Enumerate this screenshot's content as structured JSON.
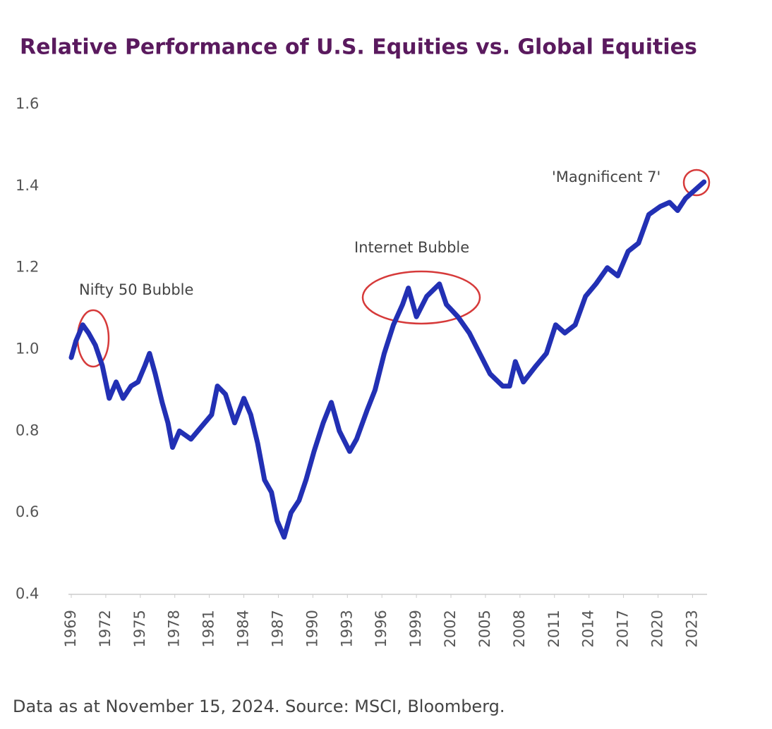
{
  "chart_data": {
    "type": "line",
    "title": "Relative Performance of U.S. Equities vs. Global Equities",
    "source": "Data as at November 15, 2024. Source: MSCI, Bloomberg.",
    "annotations": [
      "Nifty 50 Bubble",
      "Internet Bubble",
      "'Magnificent 7'"
    ],
    "xlim": [
      1969,
      2025
    ],
    "xticks": [
      1969,
      1972,
      1975,
      1978,
      1981,
      1984,
      1987,
      1990,
      1993,
      1996,
      1999,
      2002,
      2005,
      2008,
      2011,
      2014,
      2017,
      2020,
      2023
    ],
    "ylim": [
      0.4,
      1.6
    ],
    "yticks": [
      0.4,
      0.6,
      0.8,
      {
        "value": 1,
        "label": "1.0"
      },
      1.2,
      1.4,
      1.6
    ],
    "grid": false,
    "series": [
      {
        "color": "#2230b4",
        "x": [
          1969.0,
          1969.4,
          1970.0,
          1970.5,
          1971.1,
          1971.7,
          1972.3,
          1972.9,
          1973.5,
          1974.2,
          1974.8,
          1975.4,
          1975.8,
          1976.3,
          1976.9,
          1977.4,
          1977.8,
          1978.4,
          1979.4,
          1980.3,
          1981.2,
          1981.7,
          1982.4,
          1983.2,
          1984.0,
          1984.6,
          1985.2,
          1985.8,
          1986.4,
          1986.9,
          1987.5,
          1988.1,
          1988.8,
          1989.4,
          1990.1,
          1990.9,
          1991.6,
          1992.3,
          1993.2,
          1993.8,
          1994.7,
          1995.4,
          1996.2,
          1997.0,
          1997.8,
          1998.3,
          1999.0,
          1999.9,
          2001.0,
          2001.6,
          2002.6,
          2003.6,
          2004.5,
          2005.4,
          2006.5,
          2007.1,
          2007.6,
          2008.3,
          2009.4,
          2010.3,
          2011.1,
          2011.9,
          2012.8,
          2013.7,
          2014.6,
          2015.6,
          2016.5,
          2017.4,
          2018.3,
          2019.2,
          2020.2,
          2021.0,
          2021.7,
          2022.4,
          2023.2,
          2024.0
        ],
        "values": [
          0.98,
          1.02,
          1.06,
          1.04,
          1.01,
          0.96,
          0.88,
          0.92,
          0.88,
          0.91,
          0.92,
          0.96,
          0.99,
          0.94,
          0.87,
          0.82,
          0.76,
          0.8,
          0.78,
          0.81,
          0.84,
          0.91,
          0.89,
          0.82,
          0.88,
          0.84,
          0.77,
          0.68,
          0.65,
          0.58,
          0.54,
          0.6,
          0.63,
          0.68,
          0.75,
          0.82,
          0.87,
          0.8,
          0.75,
          0.78,
          0.85,
          0.9,
          0.99,
          1.06,
          1.11,
          1.15,
          1.08,
          1.13,
          1.16,
          1.11,
          1.08,
          1.04,
          0.99,
          0.94,
          0.91,
          0.91,
          0.97,
          0.92,
          0.96,
          0.99,
          1.06,
          1.04,
          1.06,
          1.13,
          1.16,
          1.2,
          1.18,
          1.24,
          1.26,
          1.33,
          1.35,
          1.36,
          1.34,
          1.37,
          1.39,
          1.41
        ]
      }
    ]
  }
}
